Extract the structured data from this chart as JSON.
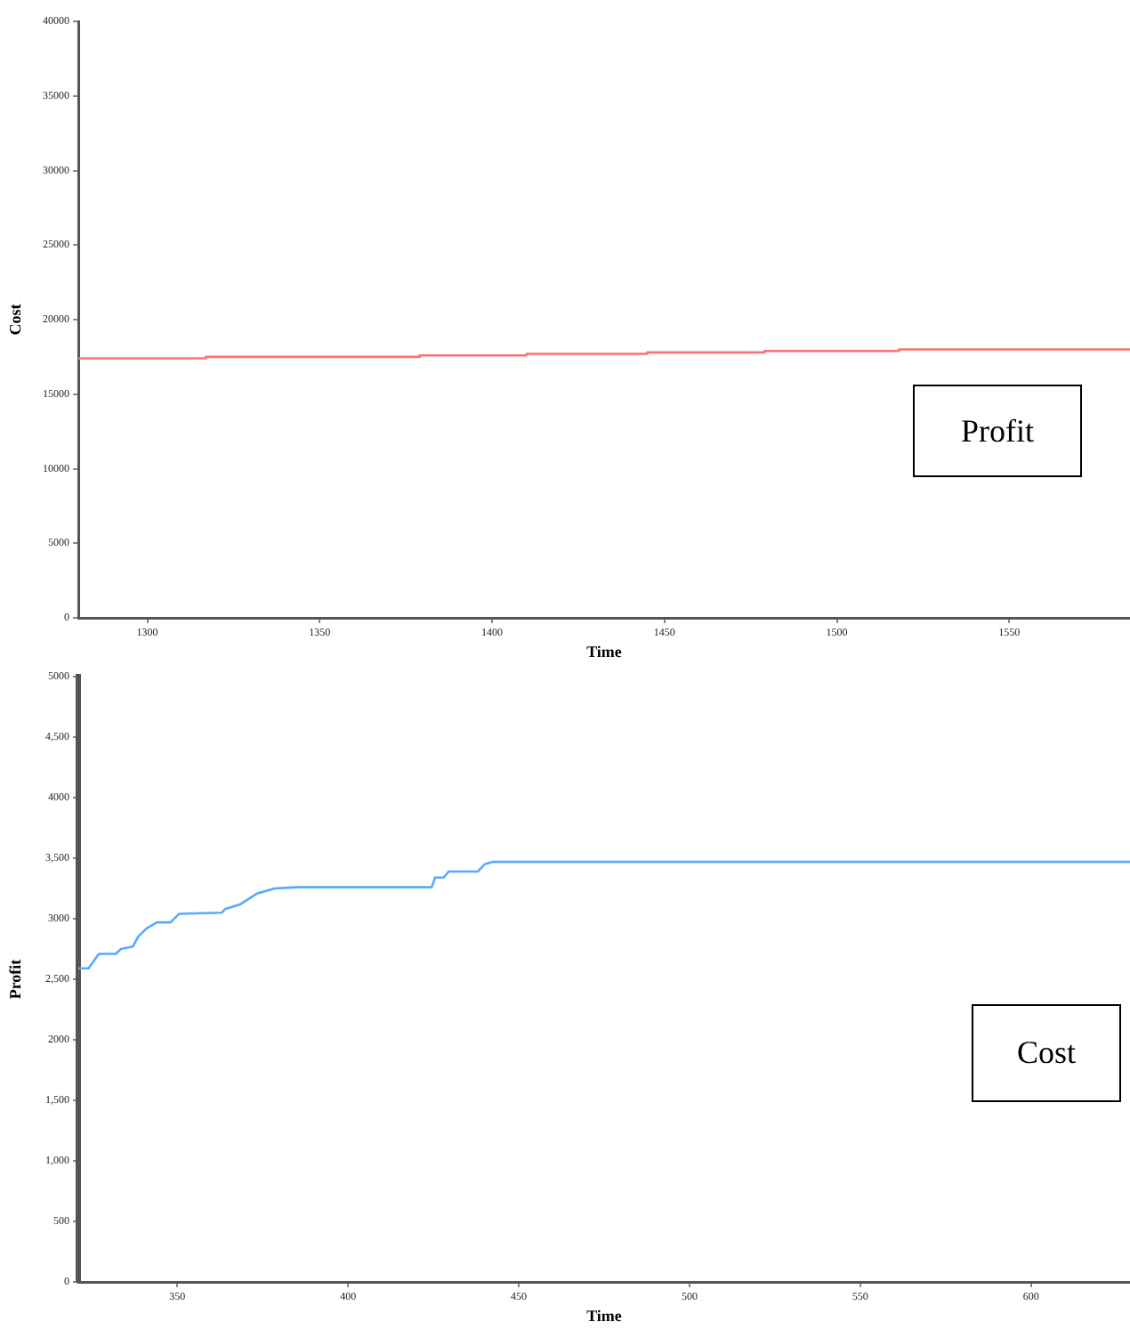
{
  "chart_data": [
    {
      "type": "step",
      "xlabel": "Time",
      "ylabel": "Cost",
      "xlim": [
        1280,
        1585
      ],
      "xticks": [
        1300,
        1350,
        1400,
        1450,
        1500,
        1550
      ],
      "ylim": [
        0,
        40000
      ],
      "yticks": [
        0,
        5000,
        10000,
        15000,
        20000,
        25000,
        30000,
        35000,
        40000
      ],
      "grid": false,
      "legend": false,
      "annotations": [
        "Profit"
      ],
      "series": [
        {
          "color": "#ff7070",
          "x": [
            1280,
            1317,
            1379,
            1410,
            1445,
            1479,
            1518,
            1554,
            1585
          ],
          "values": [
            17300,
            17400,
            17500,
            17600,
            17700,
            17800,
            17900,
            18000,
            18000
          ]
        }
      ]
    },
    {
      "type": "line",
      "xlabel": "Time",
      "ylabel": "Profit",
      "xlim": [
        321,
        629
      ],
      "xticks": [
        350,
        400,
        450,
        500,
        550,
        600
      ],
      "ylim": [
        0,
        5000
      ],
      "yticks": [
        0,
        500,
        {
          "value": 1000,
          "label": "1,000"
        },
        {
          "value": 1500,
          "label": "1,500"
        },
        2000,
        {
          "value": 2500,
          "label": "2,500"
        },
        3000,
        {
          "value": 3500,
          "label": "3,500"
        },
        4000,
        {
          "value": 4500,
          "label": "4,500"
        },
        5000
      ],
      "grid": false,
      "legend": false,
      "annotations": [
        "Cost"
      ],
      "series": [
        {
          "color": "#55aaff",
          "x": [
            321,
            324,
            327,
            332,
            333.5,
            337,
            338.5,
            341,
            344,
            348,
            350.5,
            363,
            364,
            368.5,
            373.5,
            378.5,
            385,
            424.5,
            425.5,
            428,
            429.5,
            438,
            440,
            442.5,
            629
          ],
          "values": [
            2590,
            2590,
            2710,
            2710,
            2750,
            2770,
            2850,
            2920,
            2970,
            2970,
            3040,
            3050,
            3080,
            3120,
            3210,
            3250,
            3260,
            3260,
            3340,
            3340,
            3390,
            3390,
            3450,
            3470,
            3470
          ]
        }
      ]
    }
  ]
}
